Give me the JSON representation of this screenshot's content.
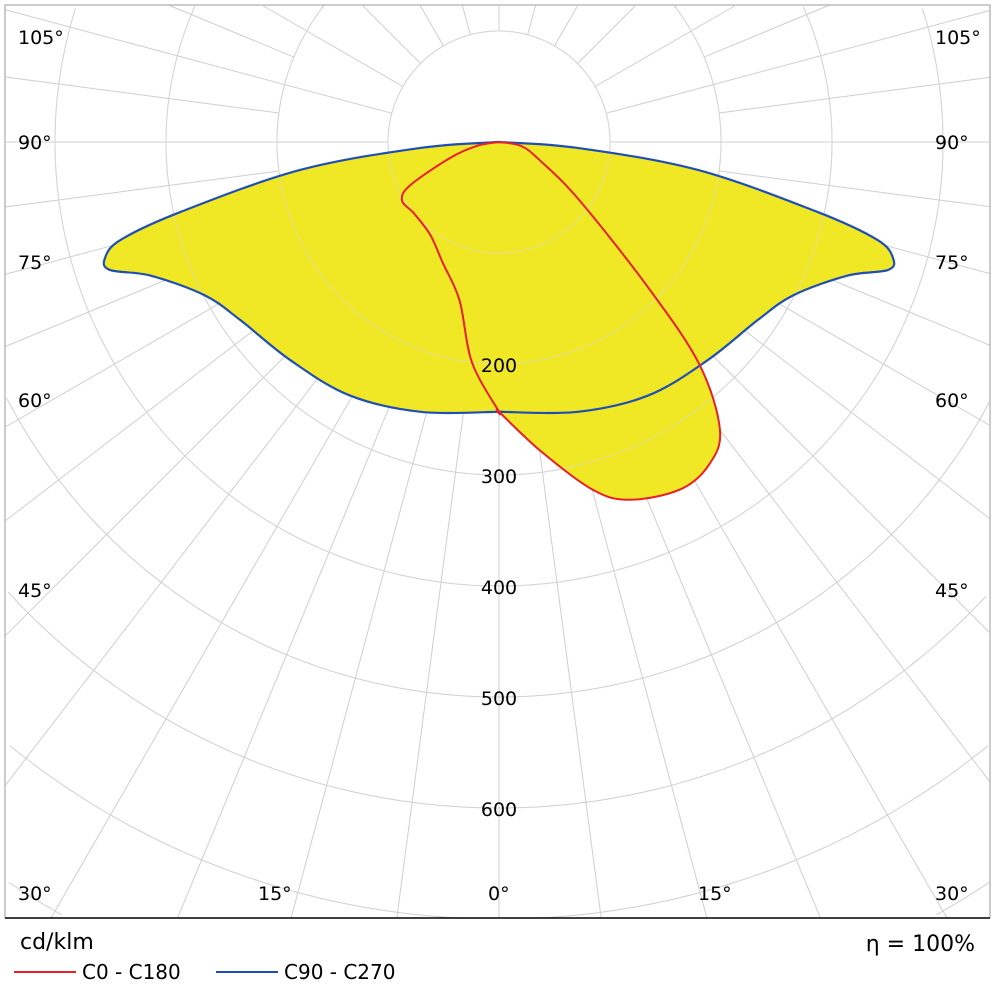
{
  "chart_data": {
    "type": "polar",
    "unit_label": "cd/klm",
    "efficiency_label": "η = 100%",
    "radial_ticks": [
      200,
      300,
      400,
      500,
      600
    ],
    "radial_max_visible": 800,
    "angle_labels": [
      {
        "text": "105°",
        "side": "left",
        "angle": 105
      },
      {
        "text": "105°",
        "side": "right",
        "angle": 105
      },
      {
        "text": "90°",
        "side": "left",
        "angle": 90
      },
      {
        "text": "90°",
        "side": "right",
        "angle": 90
      },
      {
        "text": "75°",
        "side": "left",
        "angle": 75
      },
      {
        "text": "75°",
        "side": "right",
        "angle": 75
      },
      {
        "text": "60°",
        "side": "left",
        "angle": 60
      },
      {
        "text": "60°",
        "side": "right",
        "angle": 60
      },
      {
        "text": "45°",
        "side": "left",
        "angle": 45
      },
      {
        "text": "45°",
        "side": "right",
        "angle": 45
      },
      {
        "text": "30°",
        "side": "left",
        "angle": 30
      },
      {
        "text": "30°",
        "side": "right",
        "angle": 30
      },
      {
        "text": "15°",
        "side": "left",
        "angle": 15
      },
      {
        "text": "15°",
        "side": "right",
        "angle": 15
      },
      {
        "text": "0°",
        "side": "center",
        "angle": 0
      }
    ],
    "fill_color": "#f0e824",
    "grid": true,
    "legend_placement": "bottom-left",
    "series": [
      {
        "name": "C0 - C180",
        "color": "#e8202a",
        "c0_side": {
          "angles": [
            0,
            7.5,
            15,
            20,
            27.5,
            33,
            37.5,
            42,
            45.6,
            54,
            66,
            80,
            90
          ],
          "values": [
            243,
            280,
            324,
            343,
            353,
            347,
            327,
            270,
            190,
            90,
            40,
            20,
            0
          ]
        },
        "c180_side": {
          "angles": [
            0,
            7,
            14,
            25,
            36.6,
            50,
            59,
            64,
            72,
            80,
            90
          ],
          "values": [
            243,
            200,
            147,
            120,
            104,
            100,
            102,
            89,
            46,
            20,
            0
          ]
        }
      },
      {
        "name": "C90 - C270",
        "color": "#1f4fb4",
        "angles": [
          0,
          16,
          30.5,
          43.8,
          55.5,
          62.5,
          69,
          71.8,
          73.6,
          75.5,
          77.6,
          82,
          85.7,
          90
        ],
        "values": [
          243,
          253,
          265,
          272,
          283,
          299,
          336,
          369,
          370,
          352,
          294,
          181,
          71,
          0
        ]
      }
    ]
  }
}
